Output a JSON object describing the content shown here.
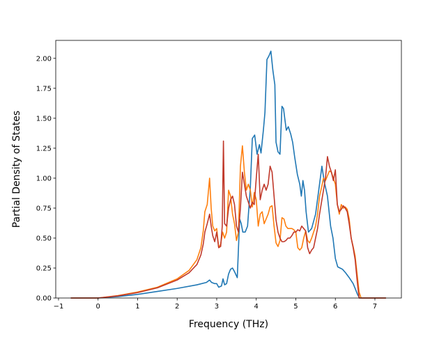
{
  "chart_data": {
    "type": "line",
    "xlabel": "Frequency (THz)",
    "ylabel": "Partial Density of States",
    "xlim": [
      -1.07,
      7.67
    ],
    "ylim": [
      0,
      2.15
    ],
    "xticks": [
      -1,
      0,
      1,
      2,
      3,
      4,
      5,
      6,
      7
    ],
    "xtick_labels": [
      "−1",
      "0",
      "1",
      "2",
      "3",
      "4",
      "5",
      "6",
      "7"
    ],
    "yticks": [
      0,
      0.25,
      0.5,
      0.75,
      1.0,
      1.25,
      1.5,
      1.75,
      2.0
    ],
    "ytick_labels": [
      "0.00",
      "0.25",
      "0.50",
      "0.75",
      "1.00",
      "1.25",
      "1.50",
      "1.75",
      "2.00"
    ],
    "grid": false,
    "legend": false,
    "series": [
      {
        "color": "#1f77b4",
        "x": [
          -0.69,
          0.0,
          0.5,
          1.0,
          1.5,
          2.0,
          2.5,
          2.74,
          2.82,
          2.87,
          2.95,
          3.0,
          3.05,
          3.12,
          3.16,
          3.2,
          3.25,
          3.3,
          3.35,
          3.4,
          3.45,
          3.52,
          3.58,
          3.62,
          3.66,
          3.72,
          3.78,
          3.85,
          3.9,
          3.96,
          4.02,
          4.08,
          4.12,
          4.18,
          4.22,
          4.27,
          4.32,
          4.37,
          4.42,
          4.47,
          4.5,
          4.55,
          4.6,
          4.65,
          4.69,
          4.72,
          4.76,
          4.81,
          4.87,
          4.92,
          4.97,
          5.04,
          5.1,
          5.14,
          5.18,
          5.22,
          5.26,
          5.32,
          5.4,
          5.5,
          5.6,
          5.66,
          5.72,
          5.8,
          5.88,
          5.94,
          6.0,
          6.06,
          6.12,
          6.18,
          6.26,
          6.35,
          6.45,
          6.5,
          6.56,
          6.61,
          6.64,
          6.7,
          6.9,
          7.28
        ],
        "y": [
          0.0,
          0.0,
          0.012,
          0.03,
          0.055,
          0.08,
          0.11,
          0.13,
          0.15,
          0.13,
          0.12,
          0.12,
          0.09,
          0.1,
          0.16,
          0.11,
          0.12,
          0.2,
          0.24,
          0.25,
          0.22,
          0.17,
          0.66,
          0.62,
          0.55,
          0.55,
          0.6,
          0.92,
          1.33,
          1.36,
          1.2,
          1.28,
          1.21,
          1.4,
          1.55,
          1.99,
          2.02,
          2.06,
          1.9,
          1.78,
          1.3,
          1.22,
          1.2,
          1.6,
          1.58,
          1.5,
          1.4,
          1.43,
          1.37,
          1.3,
          1.18,
          1.03,
          0.95,
          0.85,
          0.98,
          0.9,
          0.72,
          0.55,
          0.58,
          0.7,
          0.95,
          1.1,
          0.97,
          0.85,
          0.6,
          0.5,
          0.33,
          0.26,
          0.25,
          0.24,
          0.21,
          0.17,
          0.12,
          0.08,
          0.03,
          0.0,
          0.0,
          0.0,
          0.0,
          0.0
        ]
      },
      {
        "color": "#ff7f0e",
        "x": [
          -0.69,
          0.0,
          0.5,
          1.0,
          1.5,
          2.0,
          2.3,
          2.5,
          2.6,
          2.66,
          2.7,
          2.76,
          2.82,
          2.86,
          2.9,
          2.95,
          3.0,
          3.05,
          3.1,
          3.15,
          3.2,
          3.25,
          3.3,
          3.35,
          3.4,
          3.45,
          3.5,
          3.55,
          3.6,
          3.65,
          3.7,
          3.75,
          3.8,
          3.85,
          3.9,
          3.95,
          4.0,
          4.05,
          4.1,
          4.15,
          4.2,
          4.25,
          4.3,
          4.35,
          4.4,
          4.45,
          4.5,
          4.55,
          4.6,
          4.65,
          4.7,
          4.75,
          4.8,
          4.85,
          4.9,
          4.95,
          5.0,
          5.05,
          5.1,
          5.15,
          5.2,
          5.25,
          5.3,
          5.35,
          5.4,
          5.45,
          5.5,
          5.55,
          5.6,
          5.65,
          5.7,
          5.75,
          5.8,
          5.85,
          5.9,
          5.95,
          6.0,
          6.05,
          6.1,
          6.15,
          6.2,
          6.25,
          6.3,
          6.35,
          6.4,
          6.45,
          6.5,
          6.55,
          6.6,
          6.65,
          6.7,
          7.28
        ],
        "y": [
          0.0,
          0.0,
          0.02,
          0.05,
          0.09,
          0.16,
          0.23,
          0.32,
          0.42,
          0.56,
          0.72,
          0.78,
          1.0,
          0.75,
          0.6,
          0.56,
          0.58,
          0.42,
          0.45,
          0.55,
          0.5,
          0.55,
          0.9,
          0.85,
          0.7,
          0.62,
          0.48,
          0.55,
          1.1,
          1.27,
          1.05,
          0.9,
          0.95,
          0.9,
          0.76,
          0.88,
          0.82,
          0.6,
          0.7,
          0.72,
          0.62,
          0.66,
          0.7,
          0.76,
          0.77,
          0.6,
          0.46,
          0.43,
          0.48,
          0.67,
          0.66,
          0.6,
          0.58,
          0.58,
          0.58,
          0.57,
          0.55,
          0.42,
          0.4,
          0.42,
          0.5,
          0.56,
          0.48,
          0.46,
          0.5,
          0.55,
          0.6,
          0.7,
          0.85,
          0.92,
          1.0,
          0.98,
          1.02,
          1.06,
          1.05,
          1.0,
          0.95,
          0.78,
          0.7,
          0.78,
          0.75,
          0.76,
          0.74,
          0.66,
          0.5,
          0.43,
          0.35,
          0.2,
          0.05,
          0.0,
          0.0,
          0.0
        ]
      },
      {
        "color": "#c0392b",
        "x": [
          -0.69,
          0.0,
          0.5,
          1.0,
          1.5,
          2.0,
          2.3,
          2.5,
          2.6,
          2.66,
          2.7,
          2.76,
          2.82,
          2.86,
          2.9,
          2.95,
          3.0,
          3.05,
          3.1,
          3.14,
          3.17,
          3.2,
          3.25,
          3.3,
          3.35,
          3.4,
          3.45,
          3.5,
          3.55,
          3.6,
          3.65,
          3.7,
          3.75,
          3.8,
          3.85,
          3.9,
          3.95,
          4.0,
          4.05,
          4.1,
          4.15,
          4.2,
          4.25,
          4.3,
          4.35,
          4.4,
          4.45,
          4.5,
          4.55,
          4.6,
          4.65,
          4.7,
          4.75,
          4.8,
          4.85,
          4.9,
          4.95,
          5.0,
          5.05,
          5.1,
          5.15,
          5.2,
          5.25,
          5.3,
          5.35,
          5.4,
          5.45,
          5.5,
          5.55,
          5.6,
          5.65,
          5.7,
          5.75,
          5.8,
          5.85,
          5.9,
          5.95,
          6.0,
          6.05,
          6.1,
          6.15,
          6.2,
          6.25,
          6.3,
          6.35,
          6.4,
          6.45,
          6.5,
          6.55,
          6.6,
          6.65,
          6.7,
          7.28
        ],
        "y": [
          0.0,
          0.0,
          0.018,
          0.045,
          0.085,
          0.15,
          0.21,
          0.28,
          0.36,
          0.45,
          0.55,
          0.62,
          0.7,
          0.6,
          0.52,
          0.47,
          0.55,
          0.42,
          0.43,
          0.6,
          1.31,
          0.62,
          0.6,
          0.75,
          0.82,
          0.85,
          0.78,
          0.6,
          0.55,
          0.75,
          1.05,
          0.95,
          0.85,
          0.8,
          0.75,
          0.8,
          0.78,
          1.0,
          1.2,
          0.82,
          0.9,
          0.95,
          0.9,
          0.95,
          1.1,
          1.05,
          0.85,
          0.65,
          0.55,
          0.5,
          0.47,
          0.47,
          0.48,
          0.5,
          0.5,
          0.52,
          0.55,
          0.55,
          0.57,
          0.56,
          0.6,
          0.58,
          0.56,
          0.42,
          0.37,
          0.4,
          0.42,
          0.5,
          0.58,
          0.7,
          0.8,
          0.9,
          1.0,
          1.18,
          1.1,
          1.05,
          0.98,
          1.07,
          0.78,
          0.72,
          0.74,
          0.77,
          0.75,
          0.72,
          0.62,
          0.5,
          0.42,
          0.32,
          0.15,
          0.0,
          0.0,
          0.0,
          0.0
        ]
      }
    ]
  }
}
